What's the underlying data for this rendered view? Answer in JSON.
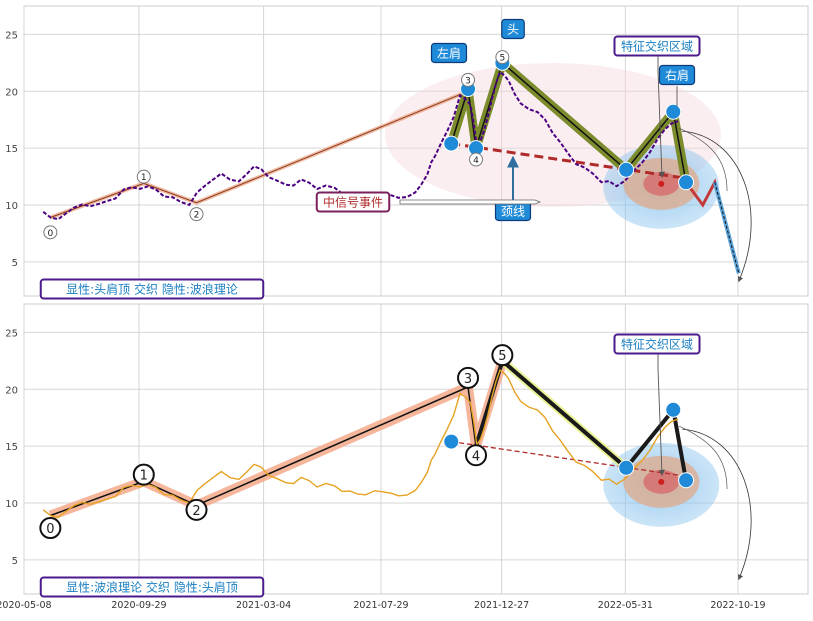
{
  "chart_data": [
    {
      "type": "line",
      "title": "",
      "xlabel": "",
      "ylabel": "",
      "ylim": [
        2,
        27.5
      ],
      "grid": true,
      "y_ticks": [
        5,
        10,
        15,
        20,
        25
      ],
      "series": [
        {
          "name": "",
          "color": "#4b0082",
          "style": "dashed",
          "points": [
            [
              "2020-06-01",
              9.4
            ],
            [
              "2020-06-20",
              8.9
            ],
            [
              "2020-07-10",
              9.6
            ],
            [
              "2020-07-30",
              10.0
            ],
            [
              "2020-08-20",
              10.4
            ],
            [
              "2020-09-10",
              11.2
            ],
            [
              "2020-09-30",
              11.6
            ],
            [
              "2020-10-20",
              11.3
            ],
            [
              "2020-11-10",
              10.6
            ],
            [
              "2020-12-01",
              10.2
            ],
            [
              "2020-12-20",
              11.5
            ],
            [
              "2021-01-10",
              12.8
            ],
            [
              "2021-02-01",
              12.2
            ],
            [
              "2021-02-20",
              13.2
            ],
            [
              "2021-03-10",
              12.6
            ],
            [
              "2021-04-01",
              11.8
            ],
            [
              "2021-04-20",
              12.1
            ],
            [
              "2021-05-10",
              11.6
            ],
            [
              "2021-06-01",
              11.4
            ],
            [
              "2021-06-20",
              11.0
            ],
            [
              "2021-07-10",
              10.9
            ],
            [
              "2021-08-01",
              10.8
            ],
            [
              "2021-08-20",
              10.7
            ],
            [
              "2021-09-10",
              11.2
            ],
            [
              "2021-09-25",
              12.5
            ],
            [
              "2021-10-05",
              14.5
            ],
            [
              "2021-10-20",
              16.5
            ],
            [
              "2021-11-05",
              19.5
            ],
            [
              "2021-11-18",
              19.0
            ],
            [
              "2021-11-26",
              15.0
            ],
            [
              "2021-12-05",
              16.5
            ],
            [
              "2021-12-15",
              19.5
            ],
            [
              "2021-12-25",
              21.5
            ],
            [
              "2022-01-05",
              21.0
            ],
            [
              "2022-01-20",
              19.0
            ],
            [
              "2022-02-10",
              18.0
            ],
            [
              "2022-03-01",
              16.5
            ],
            [
              "2022-03-20",
              14.5
            ],
            [
              "2022-04-10",
              13.2
            ],
            [
              "2022-05-01",
              12.2
            ],
            [
              "2022-05-20",
              11.5
            ],
            [
              "2022-06-10",
              13.0
            ],
            [
              "2022-07-01",
              14.8
            ],
            [
              "2022-07-20",
              16.5
            ],
            [
              "2022-08-05",
              17.5
            ]
          ]
        }
      ],
      "structure_lines": [
        {
          "kind": "wave-thin",
          "points": [
            [
              "2020-06-10",
              8.9
            ],
            [
              "2020-10-05",
              11.9
            ],
            [
              "2020-12-10",
              10.2
            ],
            [
              "2021-11-15",
              20.0
            ]
          ]
        },
        {
          "kind": "head-shoulders",
          "points": [
            [
              "2021-10-25",
              15.4
            ],
            [
              "2021-11-15",
              20.2
            ],
            [
              "2021-11-25",
              15.0
            ],
            [
              "2021-12-28",
              22.5
            ],
            [
              "2022-06-01",
              13.1
            ],
            [
              "2022-07-30",
              18.2
            ],
            [
              "2022-08-15",
              12.0
            ]
          ]
        },
        {
          "kind": "projection",
          "points": [
            [
              "2022-08-15",
              12.0
            ],
            [
              "2022-09-05",
              10.0
            ],
            [
              "2022-09-20",
              12.0
            ],
            [
              "2022-10-20",
              4.0
            ]
          ]
        },
        {
          "kind": "neckline",
          "points": [
            [
              "2021-10-25",
              15.4
            ],
            [
              "2022-08-20",
              12.3
            ]
          ]
        }
      ],
      "markers": [
        {
          "label": "0",
          "x": "2020-06-10",
          "y": 7.6
        },
        {
          "label": "1",
          "x": "2020-10-05",
          "y": 12.5
        },
        {
          "label": "2",
          "x": "2020-12-10",
          "y": 9.2
        },
        {
          "label": "3",
          "x": "2021-11-15",
          "y": 21.0
        },
        {
          "label": "4",
          "x": "2021-11-25",
          "y": 14.0
        },
        {
          "label": "5",
          "x": "2021-12-28",
          "y": 23.0
        }
      ],
      "dots": [
        [
          "2021-10-25",
          15.4
        ],
        [
          "2021-11-15",
          20.2
        ],
        [
          "2021-11-25",
          15.0
        ],
        [
          "2021-12-28",
          22.5
        ],
        [
          "2022-06-01",
          13.1
        ],
        [
          "2022-07-30",
          18.2
        ],
        [
          "2022-08-15",
          12.0
        ]
      ],
      "annotations": {
        "left_shoulder": "左肩",
        "head": "头",
        "right_shoulder": "右肩",
        "feature_zone": "特征交织区域",
        "neckline": "颈线",
        "mid_signal": "中信号事件",
        "caption": "显性:头肩顶 交织 隐性:波浪理论"
      }
    },
    {
      "type": "line",
      "title": "",
      "xlabel": "",
      "ylabel": "",
      "ylim": [
        2,
        27.5
      ],
      "grid": true,
      "y_ticks": [
        5,
        10,
        15,
        20,
        25
      ],
      "x_ticks": [
        "2020-05-08",
        "2020-09-29",
        "2021-03-04",
        "2021-07-29",
        "2021-12-27",
        "2022-05-31",
        "2022-10-19"
      ],
      "series": [
        {
          "name": "",
          "color": "#e6a323",
          "style": "solid",
          "points": [
            [
              "2020-06-01",
              9.4
            ],
            [
              "2020-06-20",
              8.9
            ],
            [
              "2020-07-10",
              9.6
            ],
            [
              "2020-07-30",
              10.0
            ],
            [
              "2020-08-20",
              10.4
            ],
            [
              "2020-09-10",
              11.2
            ],
            [
              "2020-09-30",
              11.6
            ],
            [
              "2020-10-20",
              11.3
            ],
            [
              "2020-11-10",
              10.6
            ],
            [
              "2020-12-01",
              10.2
            ],
            [
              "2020-12-20",
              11.5
            ],
            [
              "2021-01-10",
              12.8
            ],
            [
              "2021-02-01",
              12.2
            ],
            [
              "2021-02-20",
              13.2
            ],
            [
              "2021-03-10",
              12.6
            ],
            [
              "2021-04-01",
              11.8
            ],
            [
              "2021-04-20",
              12.1
            ],
            [
              "2021-05-10",
              11.6
            ],
            [
              "2021-06-01",
              11.4
            ],
            [
              "2021-06-20",
              11.0
            ],
            [
              "2021-07-10",
              10.9
            ],
            [
              "2021-08-01",
              10.8
            ],
            [
              "2021-08-20",
              10.7
            ],
            [
              "2021-09-10",
              11.2
            ],
            [
              "2021-09-25",
              12.5
            ],
            [
              "2021-10-05",
              14.5
            ],
            [
              "2021-10-20",
              16.5
            ],
            [
              "2021-11-05",
              19.5
            ],
            [
              "2021-11-18",
              19.0
            ],
            [
              "2021-11-26",
              15.0
            ],
            [
              "2021-12-05",
              16.5
            ],
            [
              "2021-12-15",
              19.5
            ],
            [
              "2021-12-25",
              21.5
            ],
            [
              "2022-01-05",
              21.0
            ],
            [
              "2022-01-20",
              19.0
            ],
            [
              "2022-02-10",
              18.0
            ],
            [
              "2022-03-01",
              16.5
            ],
            [
              "2022-03-20",
              14.5
            ],
            [
              "2022-04-10",
              13.2
            ],
            [
              "2022-05-01",
              12.2
            ],
            [
              "2022-05-20",
              11.5
            ],
            [
              "2022-06-10",
              13.0
            ],
            [
              "2022-07-01",
              14.8
            ],
            [
              "2022-07-20",
              16.5
            ],
            [
              "2022-08-05",
              17.5
            ]
          ]
        }
      ],
      "structure_lines": [
        {
          "kind": "wave",
          "points": [
            [
              "2020-06-10",
              8.9
            ],
            [
              "2020-10-05",
              11.9
            ],
            [
              "2020-12-10",
              9.8
            ],
            [
              "2021-11-15",
              20.2
            ],
            [
              "2021-11-25",
              15.0
            ],
            [
              "2021-12-28",
              22.5
            ]
          ]
        },
        {
          "kind": "head-shoulders",
          "points": [
            [
              "2021-11-25",
              15.0
            ],
            [
              "2021-12-28",
              22.5
            ],
            [
              "2022-06-01",
              13.1
            ],
            [
              "2022-07-30",
              18.2
            ],
            [
              "2022-08-15",
              12.0
            ]
          ]
        },
        {
          "kind": "neckline",
          "points": [
            [
              "2021-10-25",
              15.4
            ],
            [
              "2022-08-20",
              12.3
            ]
          ]
        }
      ],
      "markers": [
        {
          "label": "0",
          "x": "2020-06-10",
          "y": 7.8
        },
        {
          "label": "1",
          "x": "2020-10-05",
          "y": 12.5
        },
        {
          "label": "2",
          "x": "2020-12-10",
          "y": 9.4
        },
        {
          "label": "3",
          "x": "2021-11-15",
          "y": 21.0
        },
        {
          "label": "4",
          "x": "2021-11-25",
          "y": 14.2
        },
        {
          "label": "5",
          "x": "2021-12-28",
          "y": 23.0
        }
      ],
      "dots": [
        [
          "2021-10-25",
          15.4
        ],
        [
          "2022-06-01",
          13.1
        ],
        [
          "2022-07-30",
          18.2
        ],
        [
          "2022-08-15",
          12.0
        ]
      ],
      "annotations": {
        "feature_zone": "特征交织区域",
        "caption": "显性:波浪理论 交织 隐性:头肩顶"
      }
    }
  ]
}
